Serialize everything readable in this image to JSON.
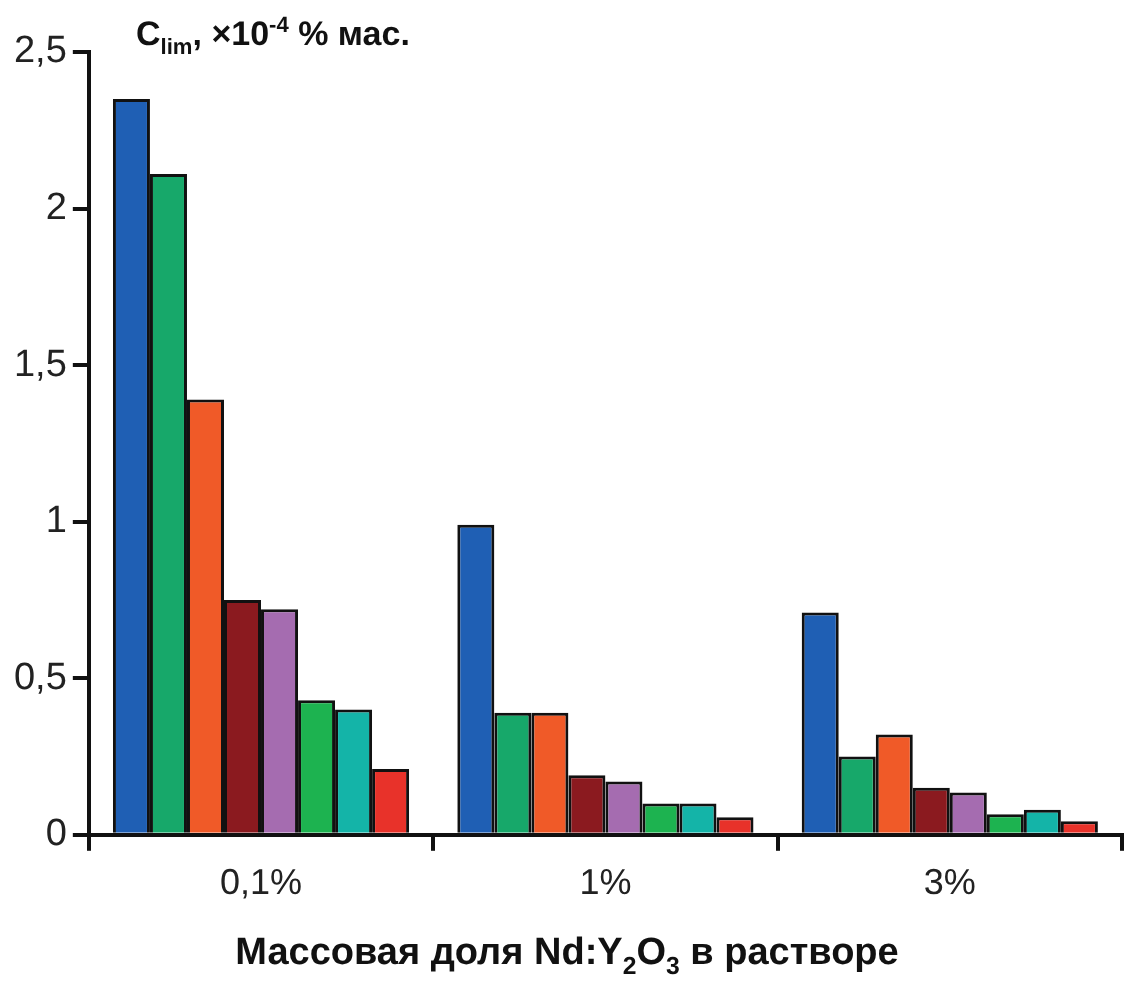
{
  "chart_data": {
    "type": "bar",
    "ylabel": "C$_{lim}$, ×10$^{-4}$ % мас.",
    "xlabel": "Массовая доля Nd:Y$_{2}$O$_{3}$ в растворе",
    "categories": [
      "0,1%",
      "1%",
      "3%"
    ],
    "series": [
      {
        "color": "#1f5fb4",
        "values": [
          2.35,
          0.99,
          0.71
        ]
      },
      {
        "color": "#17a86a",
        "values": [
          2.11,
          0.39,
          0.25
        ]
      },
      {
        "color": "#f05a28",
        "values": [
          1.39,
          0.39,
          0.32
        ]
      },
      {
        "color": "#8b1a1f",
        "values": [
          0.75,
          0.19,
          0.15
        ]
      },
      {
        "color": "#a56cb0",
        "values": [
          0.72,
          0.17,
          0.135
        ]
      },
      {
        "color": "#1db350",
        "values": [
          0.43,
          0.1,
          0.066
        ]
      },
      {
        "color": "#14b4a8",
        "values": [
          0.4,
          0.1,
          0.08
        ]
      },
      {
        "color": "#e8322a",
        "values": [
          0.21,
          0.056,
          0.043
        ]
      }
    ],
    "ylim": [
      0,
      2.5
    ],
    "yticks": [
      0,
      {
        "value": 0.5,
        "label": "0,5"
      },
      1,
      {
        "value": 1.5,
        "label": "1,5"
      },
      2,
      {
        "value": 2.5,
        "label": "2,5"
      }
    ],
    "grid": false,
    "legend": false
  }
}
